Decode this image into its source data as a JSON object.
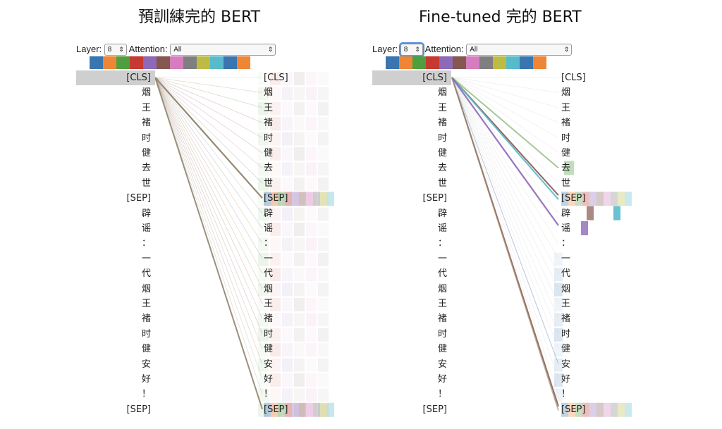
{
  "panels": [
    {
      "title": "預訓練完的 BERT",
      "layer_label": "Layer:",
      "layer_value": "8",
      "attention_label": "Attention:",
      "attention_value": "All",
      "tokens": [
        "[CLS]",
        "烟",
        "王",
        "褚",
        "时",
        "健",
        "去",
        "世",
        "[SEP]",
        "辟",
        "谣",
        "：",
        "一",
        "代",
        "烟",
        "王",
        "褚",
        "时",
        "健",
        "安",
        "好",
        "！",
        "[SEP]"
      ]
    },
    {
      "title": "Fine-tuned 完的 BERT",
      "layer_label": "Layer:",
      "layer_value": "8",
      "attention_label": "Attention:",
      "attention_value": "All",
      "tokens": [
        "[CLS]",
        "烟",
        "王",
        "褚",
        "时",
        "健",
        "去",
        "世",
        "[SEP]",
        "辟",
        "谣",
        "：",
        "一",
        "代",
        "烟",
        "王",
        "褚",
        "时",
        "健",
        "安",
        "好",
        "！",
        "[SEP]"
      ]
    }
  ],
  "head_colors": [
    "#3b75af",
    "#ef8636",
    "#519e3e",
    "#c53932",
    "#8d69b8",
    "#84584e",
    "#d57dbf",
    "#7f7f7f",
    "#bcbc45",
    "#58bbcc",
    "#3b75af",
    "#ef8636"
  ]
}
